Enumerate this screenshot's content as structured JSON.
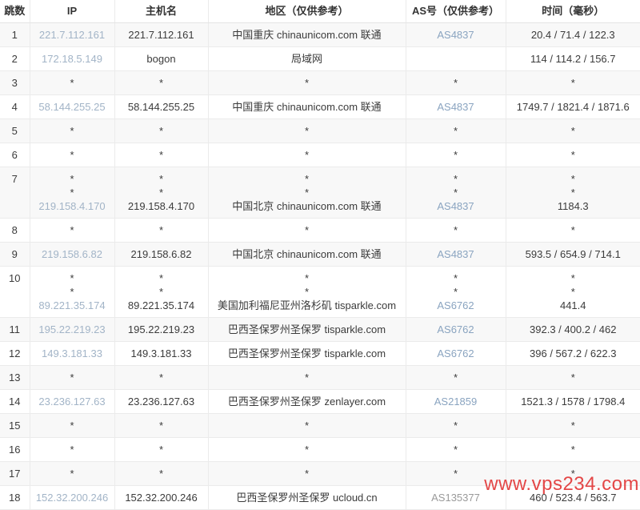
{
  "header": {
    "hop": "跳数",
    "ip": "IP",
    "host": "主机名",
    "region": "地区（仅供参考）",
    "asn": "AS号（仅供参考）",
    "time": "时间（毫秒）"
  },
  "colors": {
    "link_blue": "#8aa4c0",
    "ip_link_blue": "#a2b4c7",
    "muted_asn": "#9a9a9a",
    "watermark_red": "#e02d2d",
    "alt_row_bg": "#f8f8f8",
    "border": "#ebebeb"
  },
  "watermark": {
    "text": "www.vps234.com"
  },
  "rows": [
    {
      "hop": "1",
      "ip": [
        "221.7.112.161"
      ],
      "host": [
        "221.7.112.161"
      ],
      "region": [
        "中国重庆 chinaunicom.com 联通"
      ],
      "asn": [
        "AS4837"
      ],
      "time": [
        "20.4 / 71.4 / 122.3"
      ]
    },
    {
      "hop": "2",
      "ip": [
        "172.18.5.149"
      ],
      "host": [
        "bogon"
      ],
      "region": [
        "局域网"
      ],
      "asn": [
        ""
      ],
      "time": [
        "114 / 114.2 / 156.7"
      ]
    },
    {
      "hop": "3",
      "ip": [
        "*"
      ],
      "host": [
        "*"
      ],
      "region": [
        "*"
      ],
      "asn": [
        "*"
      ],
      "time": [
        "*"
      ]
    },
    {
      "hop": "4",
      "ip": [
        "58.144.255.25"
      ],
      "host": [
        "58.144.255.25"
      ],
      "region": [
        "中国重庆 chinaunicom.com 联通"
      ],
      "asn": [
        "AS4837"
      ],
      "time": [
        "1749.7 / 1821.4 / 1871.6"
      ]
    },
    {
      "hop": "5",
      "ip": [
        "*"
      ],
      "host": [
        "*"
      ],
      "region": [
        "*"
      ],
      "asn": [
        "*"
      ],
      "time": [
        "*"
      ]
    },
    {
      "hop": "6",
      "ip": [
        "*"
      ],
      "host": [
        "*"
      ],
      "region": [
        "*"
      ],
      "asn": [
        "*"
      ],
      "time": [
        "*"
      ]
    },
    {
      "hop": "7",
      "ip": [
        "*",
        "*",
        "219.158.4.170"
      ],
      "host": [
        "*",
        "*",
        "219.158.4.170"
      ],
      "region": [
        "*",
        "*",
        "中国北京 chinaunicom.com 联通"
      ],
      "asn": [
        "*",
        "*",
        "AS4837"
      ],
      "time": [
        "*",
        "*",
        "1184.3"
      ]
    },
    {
      "hop": "8",
      "ip": [
        "*"
      ],
      "host": [
        "*"
      ],
      "region": [
        "*"
      ],
      "asn": [
        "*"
      ],
      "time": [
        "*"
      ]
    },
    {
      "hop": "9",
      "ip": [
        "219.158.6.82"
      ],
      "host": [
        "219.158.6.82"
      ],
      "region": [
        "中国北京 chinaunicom.com 联通"
      ],
      "asn": [
        "AS4837"
      ],
      "time": [
        "593.5 / 654.9 / 714.1"
      ]
    },
    {
      "hop": "10",
      "ip": [
        "*",
        "*",
        "89.221.35.174"
      ],
      "host": [
        "*",
        "*",
        "89.221.35.174"
      ],
      "region": [
        "*",
        "*",
        "美国加利福尼亚州洛杉矶 tisparkle.com"
      ],
      "asn": [
        "*",
        "*",
        "AS6762"
      ],
      "time": [
        "*",
        "*",
        "441.4"
      ]
    },
    {
      "hop": "11",
      "ip": [
        "195.22.219.23"
      ],
      "host": [
        "195.22.219.23"
      ],
      "region": [
        "巴西圣保罗州圣保罗 tisparkle.com"
      ],
      "asn": [
        "AS6762"
      ],
      "time": [
        "392.3 / 400.2 / 462"
      ]
    },
    {
      "hop": "12",
      "ip": [
        "149.3.181.33"
      ],
      "host": [
        "149.3.181.33"
      ],
      "region": [
        "巴西圣保罗州圣保罗 tisparkle.com"
      ],
      "asn": [
        "AS6762"
      ],
      "time": [
        "396 / 567.2 / 622.3"
      ]
    },
    {
      "hop": "13",
      "ip": [
        "*"
      ],
      "host": [
        "*"
      ],
      "region": [
        "*"
      ],
      "asn": [
        "*"
      ],
      "time": [
        "*"
      ]
    },
    {
      "hop": "14",
      "ip": [
        "23.236.127.63"
      ],
      "host": [
        "23.236.127.63"
      ],
      "region": [
        "巴西圣保罗州圣保罗 zenlayer.com"
      ],
      "asn": [
        "AS21859"
      ],
      "time": [
        "1521.3 / 1578 / 1798.4"
      ]
    },
    {
      "hop": "15",
      "ip": [
        "*"
      ],
      "host": [
        "*"
      ],
      "region": [
        "*"
      ],
      "asn": [
        "*"
      ],
      "time": [
        "*"
      ]
    },
    {
      "hop": "16",
      "ip": [
        "*"
      ],
      "host": [
        "*"
      ],
      "region": [
        "*"
      ],
      "asn": [
        "*"
      ],
      "time": [
        "*"
      ]
    },
    {
      "hop": "17",
      "ip": [
        "*"
      ],
      "host": [
        "*"
      ],
      "region": [
        "*"
      ],
      "asn": [
        "*"
      ],
      "time": [
        "*"
      ]
    },
    {
      "hop": "18",
      "ip": [
        "152.32.200.246"
      ],
      "host": [
        "152.32.200.246"
      ],
      "region": [
        "巴西圣保罗州圣保罗 ucloud.cn"
      ],
      "asn": [
        "AS135377"
      ],
      "asn_muted": true,
      "time": [
        "460 / 523.4 / 563.7"
      ]
    }
  ]
}
